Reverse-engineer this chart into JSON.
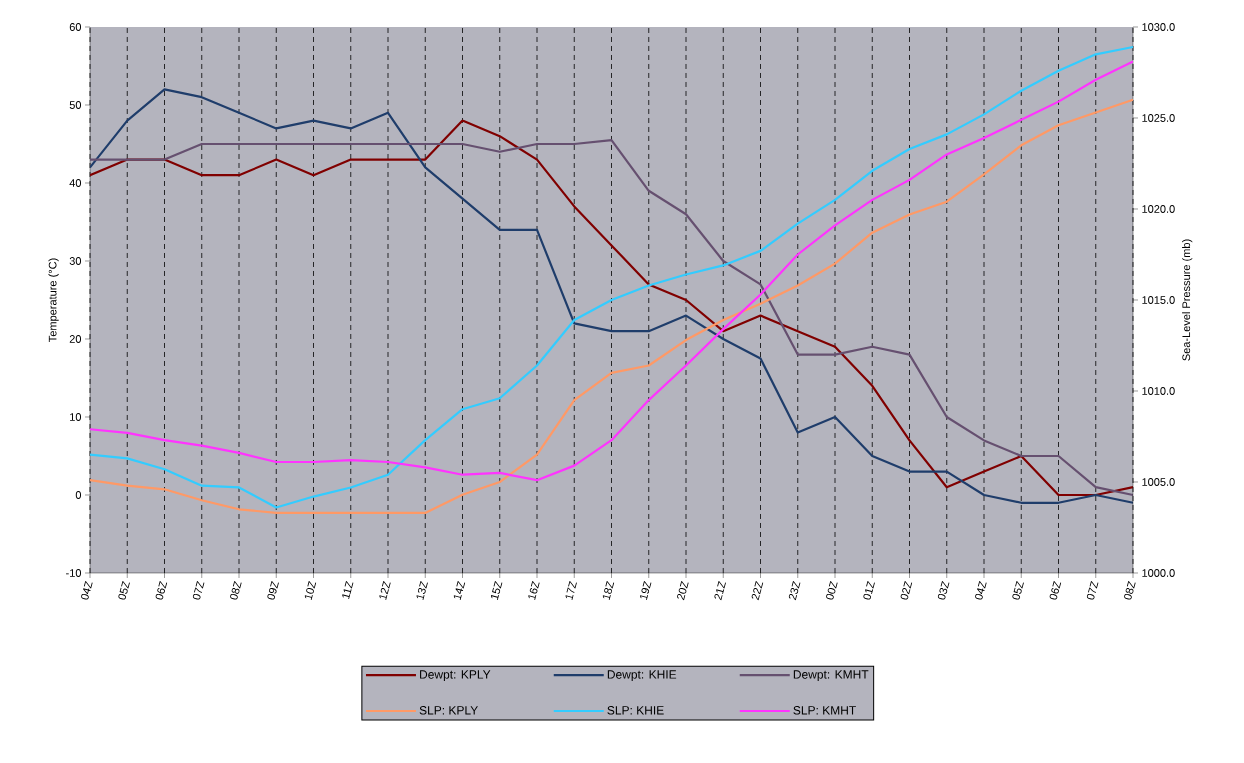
{
  "chart_data": {
    "type": "line",
    "xlabel": null,
    "ylabel": "Temperature (°C)",
    "y2label": "Sea-Level Pressure (mb)",
    "categories": [
      "04Z",
      "05Z",
      "06Z",
      "07Z",
      "08Z",
      "09Z",
      "10Z",
      "11Z",
      "12Z",
      "13Z",
      "14Z",
      "15Z",
      "16Z",
      "17Z",
      "18Z",
      "19Z",
      "20Z",
      "21Z",
      "22Z",
      "23Z",
      "00Z",
      "01Z",
      "02Z",
      "03Z",
      "04Z",
      "05Z",
      "06Z",
      "07Z",
      "08Z"
    ],
    "ylim": [
      -10,
      60
    ],
    "yticks": [
      -10,
      0,
      10,
      20,
      30,
      40,
      50,
      60
    ],
    "y2lim": [
      1000,
      1030
    ],
    "y2ticks": [
      {
        "value": 1000,
        "label": "1000.0"
      },
      {
        "value": 1005,
        "label": "1005.0"
      },
      {
        "value": 1010,
        "label": "1010.0"
      },
      {
        "value": 1015,
        "label": "1015.0"
      },
      {
        "value": 1020,
        "label": "1020.0"
      },
      {
        "value": 1025,
        "label": "1025.0"
      },
      {
        "value": 1030,
        "label": "1030.0"
      }
    ],
    "grid": "x",
    "legend": "bottom",
    "series": [
      {
        "name": "Dewpt: KPLY",
        "color": "#800000",
        "values": [
          41,
          43,
          43,
          41,
          41,
          43,
          41,
          43,
          43,
          43,
          48,
          46,
          43,
          37,
          32,
          27,
          25,
          21,
          23,
          21,
          19,
          14,
          7,
          1,
          3,
          5,
          0,
          0,
          1
        ]
      },
      {
        "name": "Dewpt: KHIE",
        "color": "#1f3d6b",
        "values": [
          42,
          48,
          52,
          51,
          49,
          47,
          48,
          47,
          49,
          42,
          38,
          34,
          34,
          22,
          21,
          21,
          23,
          20,
          17.5,
          8,
          10,
          5,
          3,
          3,
          0,
          -1,
          -1,
          0,
          -1
        ]
      },
      {
        "name": "Dewpt: KMHT",
        "color": "#665070",
        "values": [
          43,
          43,
          43,
          45,
          45,
          45,
          45,
          45,
          45,
          45,
          45,
          44,
          45,
          45,
          45.5,
          39,
          36,
          30,
          27,
          18,
          18,
          19,
          18,
          10,
          7,
          5,
          5,
          1,
          0
        ]
      },
      {
        "name": "SLP: KPLY",
        "color": "#ff9966",
        "axis": "y2",
        "values": [
          1005.1,
          1004.8,
          1004.6,
          1004.0,
          1003.5,
          1003.3,
          1003.3,
          1003.3,
          1003.3,
          1003.3,
          1004.3,
          1005.0,
          1006.5,
          1009.5,
          1011.0,
          1011.4,
          1012.8,
          1013.9,
          1014.8,
          1015.8,
          1017.0,
          1018.7,
          1019.7,
          1020.4,
          1021.9,
          1023.5,
          1024.6,
          1025.3,
          1026.0
        ]
      },
      {
        "name": "SLP: KHIE",
        "color": "#33ccff",
        "axis": "y2",
        "values": [
          1006.5,
          1006.3,
          1005.7,
          1004.8,
          1004.7,
          1003.6,
          1004.2,
          1004.7,
          1005.4,
          1007.3,
          1009.0,
          1009.6,
          1011.4,
          1013.9,
          1015.0,
          1015.8,
          1016.4,
          1016.9,
          1017.7,
          1019.2,
          1020.5,
          1022.1,
          1023.3,
          1024.1,
          1025.2,
          1026.5,
          1027.6,
          1028.5,
          1028.9
        ]
      },
      {
        "name": "SLP: KMHT",
        "color": "#ff33ff",
        "axis": "y2",
        "values": [
          1007.9,
          1007.7,
          1007.3,
          1007.0,
          1006.6,
          1006.1,
          1006.1,
          1006.2,
          1006.1,
          1005.8,
          1005.4,
          1005.5,
          1005.1,
          1005.9,
          1007.3,
          1009.5,
          1011.4,
          1013.4,
          1015.3,
          1017.5,
          1019.1,
          1020.5,
          1021.6,
          1023.0,
          1023.9,
          1024.9,
          1025.9,
          1027.1,
          1028.1
        ]
      }
    ]
  }
}
